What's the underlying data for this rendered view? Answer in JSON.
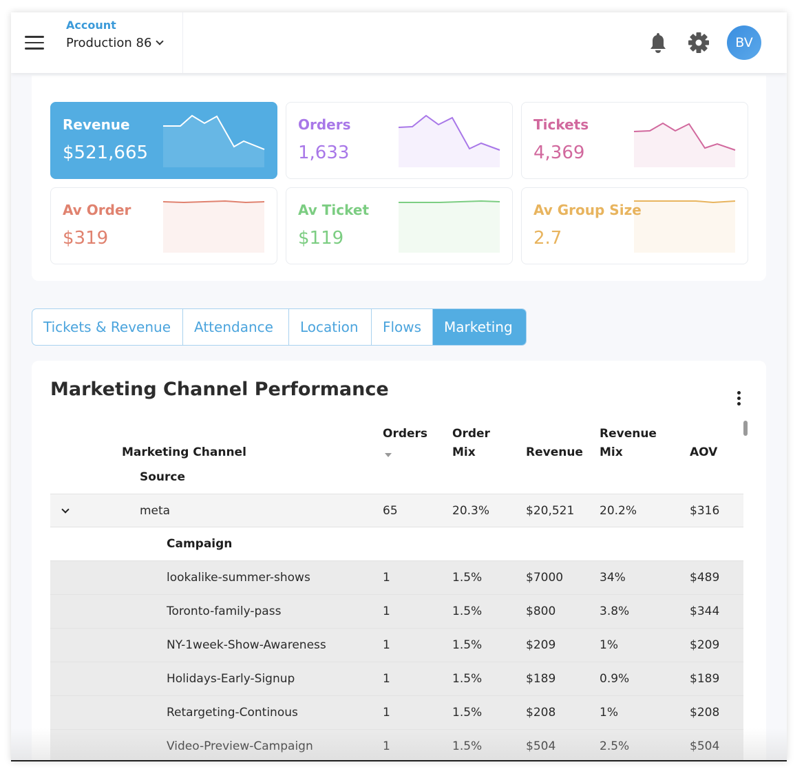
{
  "header": {
    "account_label": "Account",
    "account_value": "Production 86",
    "avatar_initials": "BV",
    "icons": [
      "menu-icon",
      "bell-icon",
      "gear-icon",
      "chevron-down-icon"
    ]
  },
  "kpis": [
    {
      "title": "Revenue",
      "value": "$521,665",
      "color": "#53ade2",
      "text_color": "#ffffff",
      "active": true
    },
    {
      "title": "Orders",
      "value": "1,633",
      "color": "#a877e8"
    },
    {
      "title": "Tickets",
      "value": "4,369",
      "color": "#d1689d"
    },
    {
      "title": "Av Order",
      "value": "$319",
      "color": "#e0826f"
    },
    {
      "title": "Av Ticket",
      "value": "$119",
      "color": "#7ccd82"
    },
    {
      "title": "Av Group Size",
      "value": "2.7",
      "color": "#e8b45e"
    }
  ],
  "tabs": [
    {
      "label": "Tickets & Revenue",
      "active": false
    },
    {
      "label": "Attendance",
      "active": false
    },
    {
      "label": "Location",
      "active": false
    },
    {
      "label": "Flows",
      "active": false
    },
    {
      "label": "Marketing",
      "active": true
    }
  ],
  "table": {
    "title": "Marketing Channel Performance",
    "headers": {
      "channel": "Marketing Channel",
      "source": "Source",
      "orders": "Orders",
      "order_mix_1": "Order",
      "order_mix_2": "Mix",
      "revenue": "Revenue",
      "revenue_mix_1": "Revenue",
      "revenue_mix_2": "Mix",
      "aov": "AOV"
    },
    "group": {
      "source": "meta",
      "orders": "65",
      "order_mix": "20.3%",
      "revenue": "$20,521",
      "revenue_mix": "20.2%",
      "aov": "$316",
      "expanded": true
    },
    "campaign_label": "Campaign",
    "campaigns": [
      {
        "name": "lookalike-summer-shows",
        "orders": "1",
        "order_mix": "1.5%",
        "revenue": "$7000",
        "revenue_mix": "34%",
        "aov": "$489"
      },
      {
        "name": "Toronto-family-pass",
        "orders": "1",
        "order_mix": "1.5%",
        "revenue": "$800",
        "revenue_mix": "3.8%",
        "aov": "$344"
      },
      {
        "name": "NY-1week-Show-Awareness",
        "orders": "1",
        "order_mix": "1.5%",
        "revenue": "$209",
        "revenue_mix": "1%",
        "aov": "$209"
      },
      {
        "name": "Holidays-Early-Signup",
        "orders": "1",
        "order_mix": "1.5%",
        "revenue": "$189",
        "revenue_mix": "0.9%",
        "aov": "$189"
      },
      {
        "name": "Retargeting-Continous",
        "orders": "1",
        "order_mix": "1.5%",
        "revenue": "$208",
        "revenue_mix": "1%",
        "aov": "$208"
      },
      {
        "name": "Video-Preview-Campaign",
        "orders": "1",
        "order_mix": "1.5%",
        "revenue": "$504",
        "revenue_mix": "2.5%",
        "aov": "$504"
      }
    ]
  }
}
